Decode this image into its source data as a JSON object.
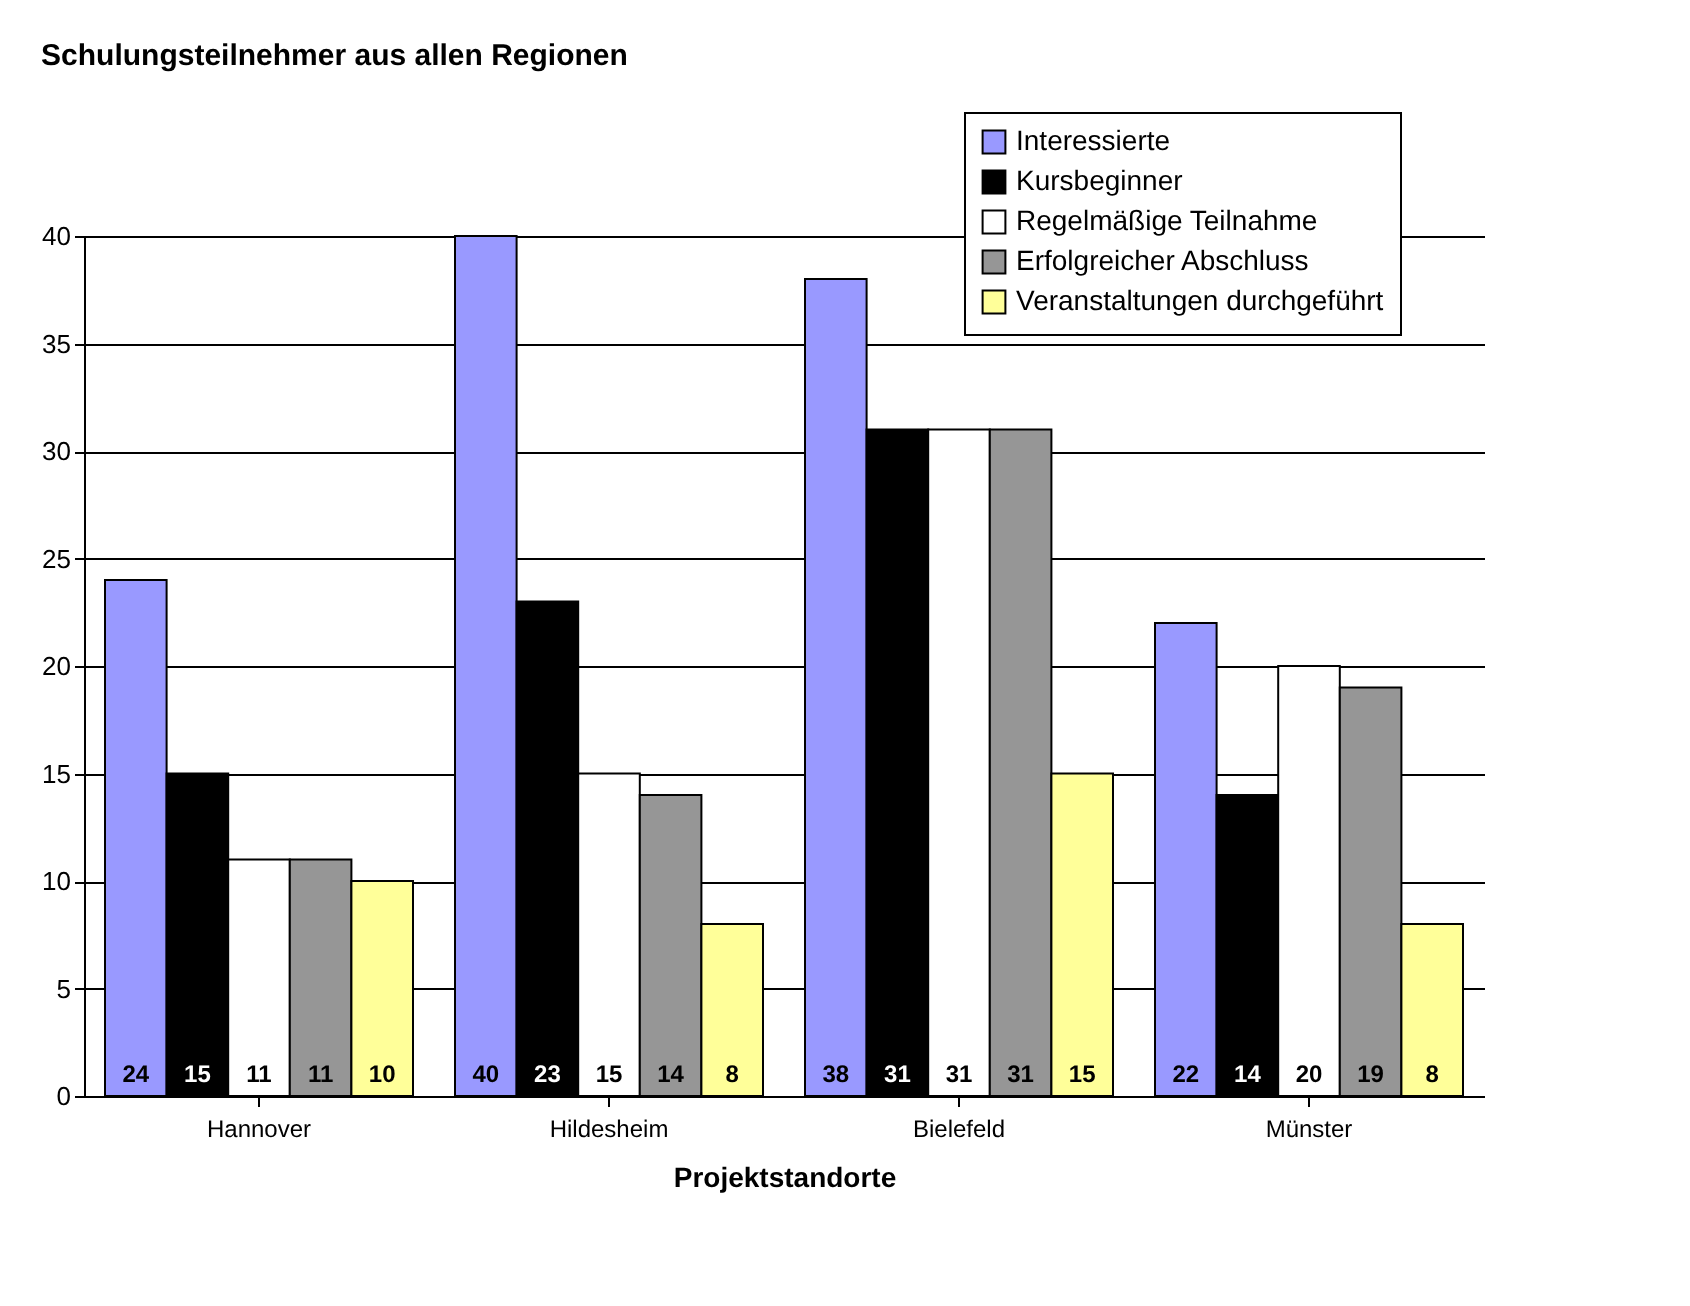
{
  "chart_data": {
    "type": "bar",
    "title": "Schulungsteilnehmer aus allen Regionen",
    "xlabel": "Projektstandorte",
    "categories": [
      "Hannover",
      "Hildesheim",
      "Bielefeld",
      "Münster"
    ],
    "series": [
      {
        "name": "Interessierte",
        "color": "#9999ff",
        "values": [
          24,
          40,
          38,
          22
        ]
      },
      {
        "name": "Kursbeginner",
        "color": "#000000",
        "values": [
          15,
          23,
          31,
          14
        ]
      },
      {
        "name": "Regelmäßige Teilnahme",
        "color": "#ffffff",
        "values": [
          11,
          15,
          31,
          20
        ]
      },
      {
        "name": "Erfolgreicher Abschluss",
        "color": "#969696",
        "values": [
          11,
          14,
          31,
          19
        ]
      },
      {
        "name": "Veranstaltungen durchgeführt",
        "color": "#ffff99",
        "values": [
          10,
          8,
          15,
          8
        ]
      }
    ],
    "ylim": [
      0,
      40
    ],
    "yticks": [
      0,
      5,
      10,
      15,
      20,
      25,
      30,
      35,
      40
    ],
    "grid": "y",
    "legend": "top right",
    "data_labels": true
  }
}
